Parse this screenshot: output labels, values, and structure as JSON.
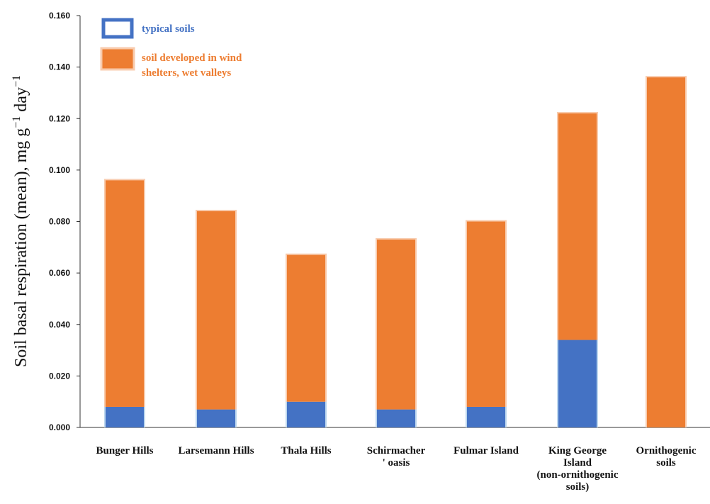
{
  "chart_data": {
    "type": "bar",
    "stacked": true,
    "title": "",
    "xlabel": "",
    "ylabel": "Soil basal respiration (mean), mg g",
    "ylabel_sup1": "−1",
    "ylabel_mid": " day",
    "ylabel_sup2": "−1",
    "ylim": [
      0,
      0.16
    ],
    "yticks": [
      "0.000",
      "0.020",
      "0.040",
      "0.060",
      "0.080",
      "0.100",
      "0.120",
      "0.140",
      "0.160"
    ],
    "ytick_values": [
      0,
      0.02,
      0.04,
      0.06,
      0.08,
      0.1,
      0.12,
      0.14,
      0.16
    ],
    "grid": false,
    "legend_position": "top-left",
    "categories": [
      [
        "Bunger Hills"
      ],
      [
        "Larsemann Hills"
      ],
      [
        "Thala Hills"
      ],
      [
        "Schirmacher",
        "' oasis"
      ],
      [
        "Fulmar Island"
      ],
      [
        "King George",
        "Island",
        "(non-ornithogenic",
        "soils)"
      ],
      [
        "Ornithogenic",
        "soils"
      ]
    ],
    "series": [
      {
        "name": "typical soils",
        "color": "#4472C4",
        "values": [
          0.008,
          0.007,
          0.01,
          0.007,
          0.008,
          0.034,
          0
        ]
      },
      {
        "name_lines": [
          "soil developed in wind",
          "shelters, wet valleys"
        ],
        "name": "soil developed in wind shelters, wet valleys",
        "color": "#ED7D31",
        "values": [
          0.088,
          0.077,
          0.057,
          0.066,
          0.072,
          0.088,
          0.136
        ]
      }
    ]
  }
}
